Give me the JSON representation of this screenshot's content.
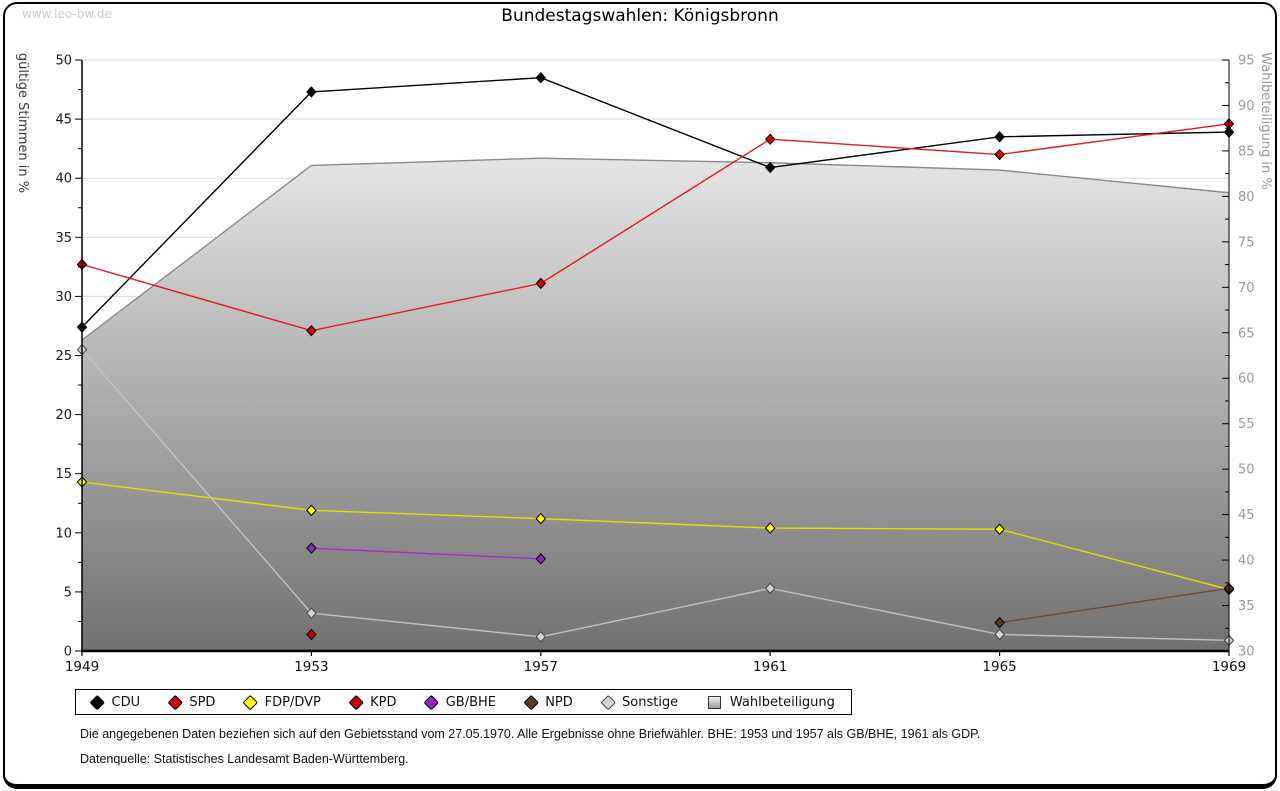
{
  "page": {
    "watermark": "www.leo-bw.de",
    "title": "Bundestagswahlen: Königsbronn",
    "footnote1": "Die angegebenen Daten beziehen sich auf den Gebietsstand vom 27.05.1970. Alle Ergebnisse ohne Briefwähler. BHE: 1953 und 1957 als GB/BHE, 1961 als GDP.",
    "footnote2": "Datenquelle: Statistisches Landesamt Baden-Württemberg."
  },
  "chart_data": {
    "type": "line",
    "title": "Bundestagswahlen: Königsbronn",
    "x": [
      1949,
      1953,
      1957,
      1961,
      1965,
      1969
    ],
    "axes": {
      "left": {
        "label": "gültige Stimmen in %",
        "min": 0,
        "max": 50,
        "major": 5,
        "minor": 2.5
      },
      "right": {
        "label": "Wahlbeteiligung in %",
        "min": 30,
        "max": 95,
        "major": 5,
        "minor": 2.5
      }
    },
    "grid": "horizontal-major-left",
    "legend_position": "bottom",
    "area_fill_top": "#fcfcfc",
    "area_fill_bottom": "#717171",
    "grid_color": "#d9d9d9",
    "series": [
      {
        "name": "CDU",
        "axis": "left",
        "marker": "diamond",
        "line_color": "#000000",
        "marker_color": "#000000",
        "points": [
          [
            1949,
            27.4
          ],
          [
            1953,
            47.3
          ],
          [
            1957,
            48.5
          ],
          [
            1961,
            40.9
          ],
          [
            1965,
            43.5
          ],
          [
            1969,
            43.9
          ]
        ]
      },
      {
        "name": "SPD",
        "axis": "left",
        "marker": "diamond",
        "line_color": "#e61919",
        "marker_color": "#d40000",
        "points": [
          [
            1949,
            32.7
          ],
          [
            1953,
            27.1
          ],
          [
            1957,
            31.1
          ],
          [
            1961,
            43.3
          ],
          [
            1965,
            42.0
          ],
          [
            1969,
            44.6
          ]
        ]
      },
      {
        "name": "FDP/DVP",
        "axis": "left",
        "marker": "diamond",
        "line_color": "#e6df00",
        "marker_color": "#ffff00",
        "points": [
          [
            1949,
            14.3
          ],
          [
            1953,
            11.9
          ],
          [
            1957,
            11.2
          ],
          [
            1961,
            10.4
          ],
          [
            1965,
            10.3
          ],
          [
            1969,
            5.2
          ]
        ]
      },
      {
        "name": "KPD",
        "axis": "left",
        "marker": "diamond",
        "line_color": "#a00000",
        "marker_color": "#c00000",
        "points": [
          [
            1953,
            1.4
          ]
        ]
      },
      {
        "name": "GB/BHE",
        "axis": "left",
        "marker": "diamond",
        "line_color": "#9b30d0",
        "marker_color": "#8d27c2",
        "points": [
          [
            1953,
            8.7
          ],
          [
            1957,
            7.8
          ]
        ]
      },
      {
        "name": "NPD",
        "axis": "left",
        "marker": "diamond",
        "line_color": "#6e4a2a",
        "marker_color": "#5d3a1a",
        "points": [
          [
            1965,
            2.4
          ],
          [
            1969,
            5.3
          ]
        ]
      },
      {
        "name": "Sonstige",
        "axis": "left",
        "marker": "diamond",
        "line_color": "#c2c2c2",
        "marker_color": "#d4d4d4",
        "points": [
          [
            1949,
            25.5
          ],
          [
            1953,
            3.2
          ],
          [
            1957,
            1.2
          ],
          [
            1961,
            5.3
          ],
          [
            1965,
            1.4
          ],
          [
            1969,
            0.9
          ]
        ]
      },
      {
        "name": "Wahlbeteiligung",
        "axis": "right",
        "marker": "square",
        "style": "area",
        "line_color": "#8a8a8a",
        "marker_color": "#c8c8c8",
        "points": [
          [
            1949,
            64.2
          ],
          [
            1953,
            83.4
          ],
          [
            1957,
            84.2
          ],
          [
            1961,
            83.7
          ],
          [
            1965,
            82.9
          ],
          [
            1969,
            80.4
          ]
        ]
      }
    ]
  }
}
